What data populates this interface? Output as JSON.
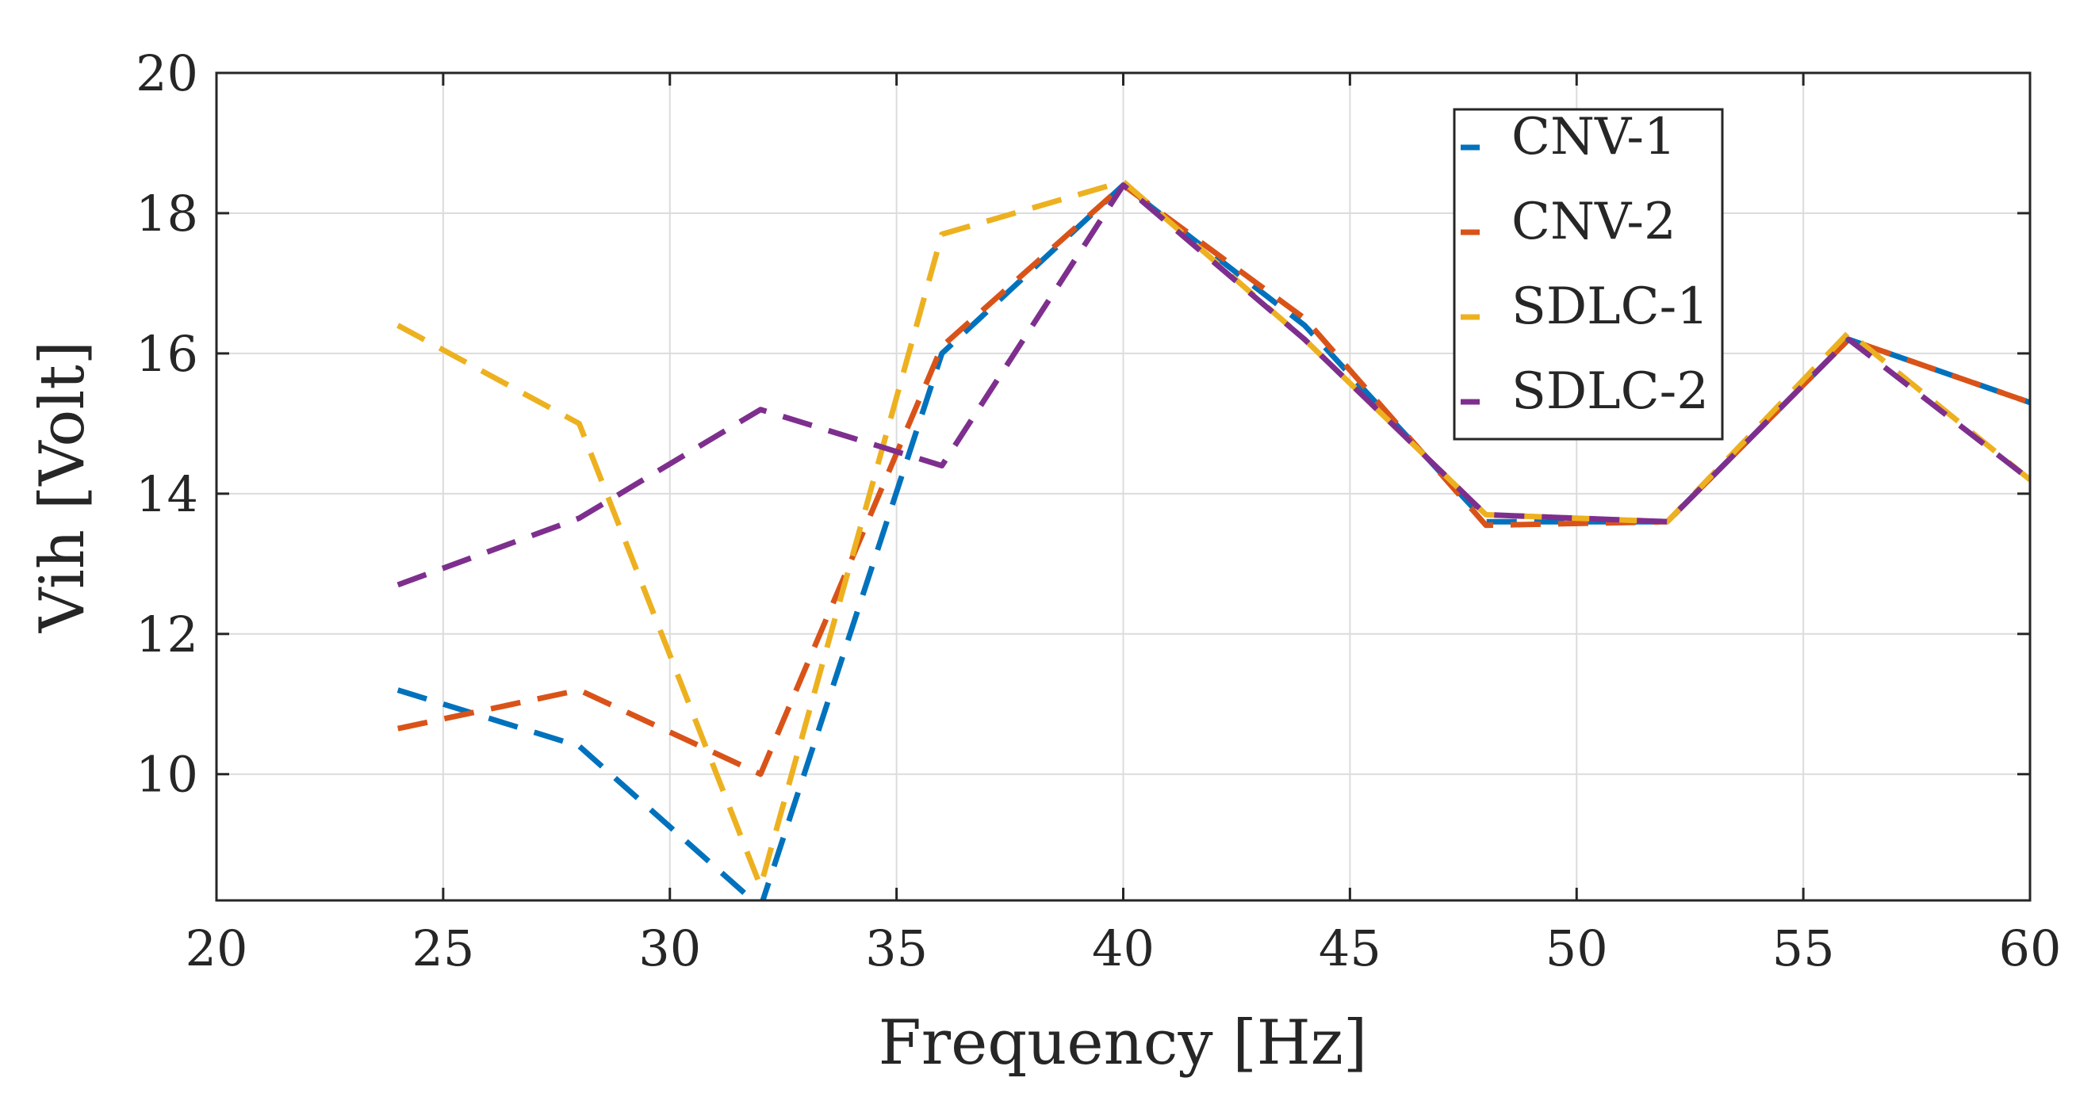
{
  "chart_data": {
    "type": "line",
    "xlabel": "Frequency [Hz]",
    "ylabel": "Vih [Volt]",
    "xlim": [
      20,
      60
    ],
    "ylim": [
      8.2,
      20
    ],
    "xticks": [
      20,
      25,
      30,
      35,
      40,
      45,
      50,
      55,
      60
    ],
    "yticks": [
      10,
      12,
      14,
      16,
      18,
      20
    ],
    "xtick_labels": [
      "20",
      "25",
      "30",
      "35",
      "40",
      "45",
      "50",
      "55",
      "60"
    ],
    "ytick_labels": [
      "10",
      "12",
      "14",
      "16",
      "18",
      "20"
    ],
    "grid": true,
    "legend_position": "top-right",
    "line_style": "dashed",
    "x": [
      24,
      28,
      32,
      36,
      40,
      44,
      48,
      52,
      56,
      60
    ],
    "series": [
      {
        "name": "CNV-1",
        "color": "#0072BD",
        "values": [
          11.2,
          10.4,
          8.1,
          16.0,
          18.4,
          16.4,
          13.6,
          13.6,
          16.2,
          15.3
        ]
      },
      {
        "name": "CNV-2",
        "color": "#D95319",
        "values": [
          10.65,
          11.2,
          10.0,
          16.1,
          18.4,
          16.5,
          13.55,
          13.6,
          16.2,
          15.3
        ]
      },
      {
        "name": "SDLC-1",
        "color": "#EDB120",
        "values": [
          16.4,
          15.0,
          8.4,
          17.7,
          18.45,
          16.2,
          13.7,
          13.6,
          16.3,
          14.2
        ]
      },
      {
        "name": "SDLC-2",
        "color": "#7E2F8E",
        "values": [
          12.7,
          13.65,
          15.2,
          14.4,
          18.4,
          16.2,
          13.7,
          13.6,
          16.2,
          14.2
        ]
      }
    ]
  }
}
